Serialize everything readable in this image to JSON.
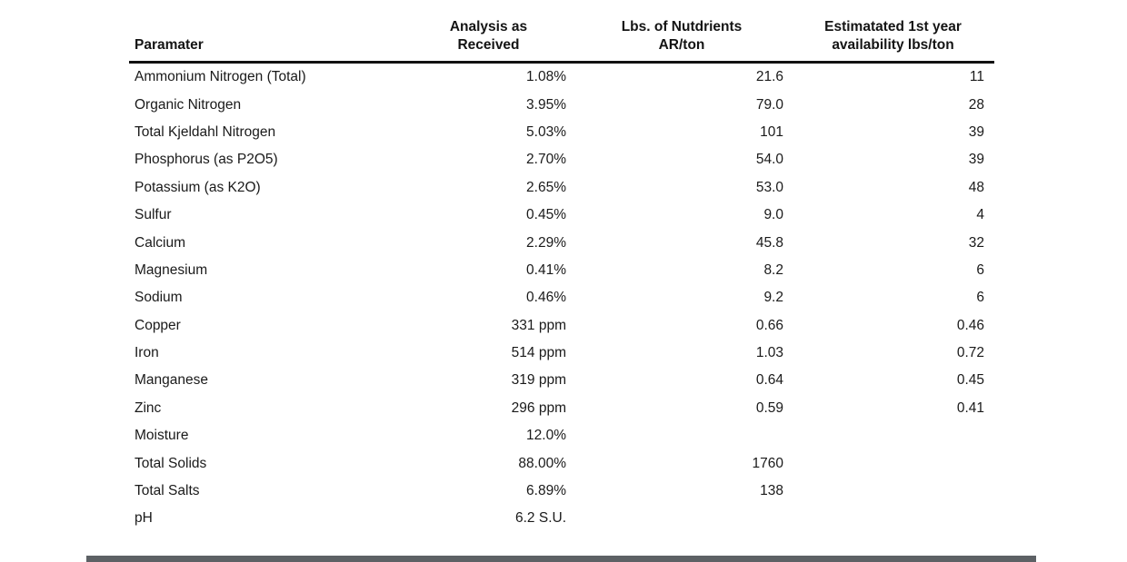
{
  "table": {
    "columns": [
      {
        "label": "Paramater"
      },
      {
        "label": "Analysis as\nReceived"
      },
      {
        "label": "Lbs. of Nutdrients\nAR/ton"
      },
      {
        "label": "Estimatated 1st year\navailability lbs/ton"
      }
    ],
    "rows": [
      {
        "parameter": "Ammonium Nitrogen (Total)",
        "analysis": "1.08%",
        "lbs": "21.6",
        "avail": "11"
      },
      {
        "parameter": "Organic Nitrogen",
        "analysis": "3.95%",
        "lbs": "79.0",
        "avail": "28"
      },
      {
        "parameter": "Total Kjeldahl Nitrogen",
        "analysis": "5.03%",
        "lbs": "101",
        "avail": "39"
      },
      {
        "parameter": "Phosphorus (as P2O5)",
        "analysis": "2.70%",
        "lbs": "54.0",
        "avail": "39"
      },
      {
        "parameter": "Potassium (as K2O)",
        "analysis": "2.65%",
        "lbs": "53.0",
        "avail": "48"
      },
      {
        "parameter": "Sulfur",
        "analysis": "0.45%",
        "lbs": "9.0",
        "avail": "4"
      },
      {
        "parameter": "Calcium",
        "analysis": "2.29%",
        "lbs": "45.8",
        "avail": "32"
      },
      {
        "parameter": "Magnesium",
        "analysis": "0.41%",
        "lbs": "8.2",
        "avail": "6"
      },
      {
        "parameter": "Sodium",
        "analysis": "0.46%",
        "lbs": "9.2",
        "avail": "6"
      },
      {
        "parameter": "Copper",
        "analysis": "331 ppm",
        "lbs": "0.66",
        "avail": "0.46"
      },
      {
        "parameter": "Iron",
        "analysis": "514 ppm",
        "lbs": "1.03",
        "avail": "0.72"
      },
      {
        "parameter": "Manganese",
        "analysis": "319 ppm",
        "lbs": "0.64",
        "avail": "0.45"
      },
      {
        "parameter": "Zinc",
        "analysis": "296 ppm",
        "lbs": "0.59",
        "avail": "0.41"
      },
      {
        "parameter": "Moisture",
        "analysis": "12.0%",
        "lbs": "",
        "avail": ""
      },
      {
        "parameter": "Total Solids",
        "analysis": "88.00%",
        "lbs": "1760",
        "avail": ""
      },
      {
        "parameter": "Total Salts",
        "analysis": "6.89%",
        "lbs": "138",
        "avail": ""
      },
      {
        "parameter": "pH",
        "analysis": "6.2 S.U.",
        "lbs": "",
        "avail": ""
      }
    ]
  },
  "colors": {
    "header_rule": "#111111",
    "text": "#1a1a1a",
    "scrollbar": "#5d6165",
    "background": "#ffffff"
  }
}
